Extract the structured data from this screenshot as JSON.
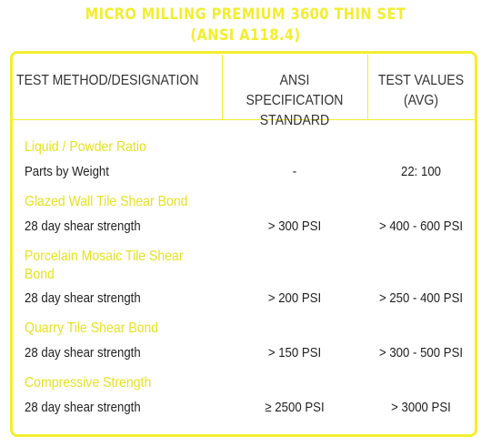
{
  "title": {
    "line1": "MICRO MILLING PREMIUM 3600 THIN SET",
    "line2": "(ANSI A118.4)"
  },
  "colors": {
    "accent": "#f2ee2e",
    "section_text": "#e6e21f",
    "body_text": "#222222"
  },
  "headers": {
    "col1": "TEST METHOD/DESIGNATION",
    "col2_line1": "ANSI SPECIFICATION",
    "col2_line2": "STANDARD",
    "col3_line1": "TEST VALUES",
    "col3_line2": "(AVG)"
  },
  "rows": [
    {
      "section": "Liquid / Powder Ratio",
      "label": "Parts by Weight",
      "spec": "-",
      "value": "22: 100"
    },
    {
      "section": "Glazed Wall Tile Shear Bond",
      "label": "28 day shear strength",
      "spec": "> 300 PSI",
      "value": "> 400 - 600 PSI"
    },
    {
      "section_line1": "Porcelain Mosaic Tile Shear",
      "section_line2": "Bond",
      "label": "28 day shear strength",
      "spec": "> 200 PSI",
      "value": "> 250 - 400 PSI"
    },
    {
      "section": "Quarry Tile Shear Bond",
      "label": "28 day shear strength",
      "spec": "> 150 PSI",
      "value": "> 300 - 500 PSI"
    },
    {
      "section": "Compressive Strength",
      "label": "28 day shear strength",
      "spec": "≥ 2500 PSI",
      "value": "> 3000 PSI"
    }
  ]
}
